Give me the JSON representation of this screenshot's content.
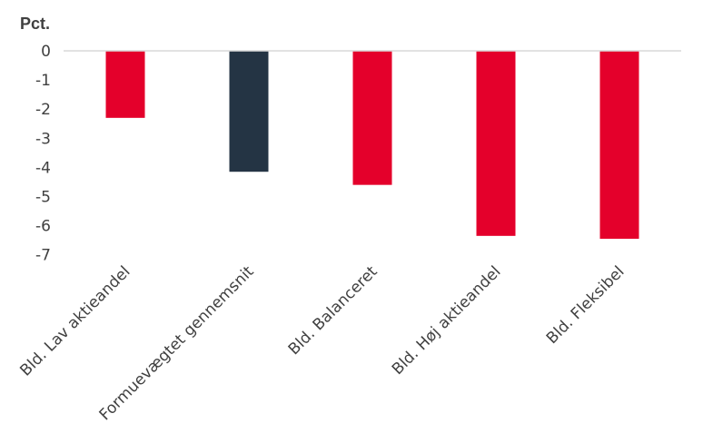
{
  "chart_data": {
    "type": "bar",
    "title": "",
    "xlabel": "",
    "ylabel": "Pct.",
    "ylim": [
      -7,
      0
    ],
    "yticks": [
      0,
      -1,
      -2,
      -3,
      -4,
      -5,
      -6,
      -7
    ],
    "grid": false,
    "categories": [
      "Bld. Lav aktieandel",
      "Formuevægtet gennemsnit",
      "Bld. Balanceret",
      "Bld. Høj aktieandel",
      "Bld. Fleksibel"
    ],
    "values": [
      -2.3,
      -4.15,
      -4.6,
      -6.35,
      -6.45
    ],
    "colors": [
      "#e4002b",
      "#243444",
      "#e4002b",
      "#e4002b",
      "#e4002b"
    ]
  }
}
